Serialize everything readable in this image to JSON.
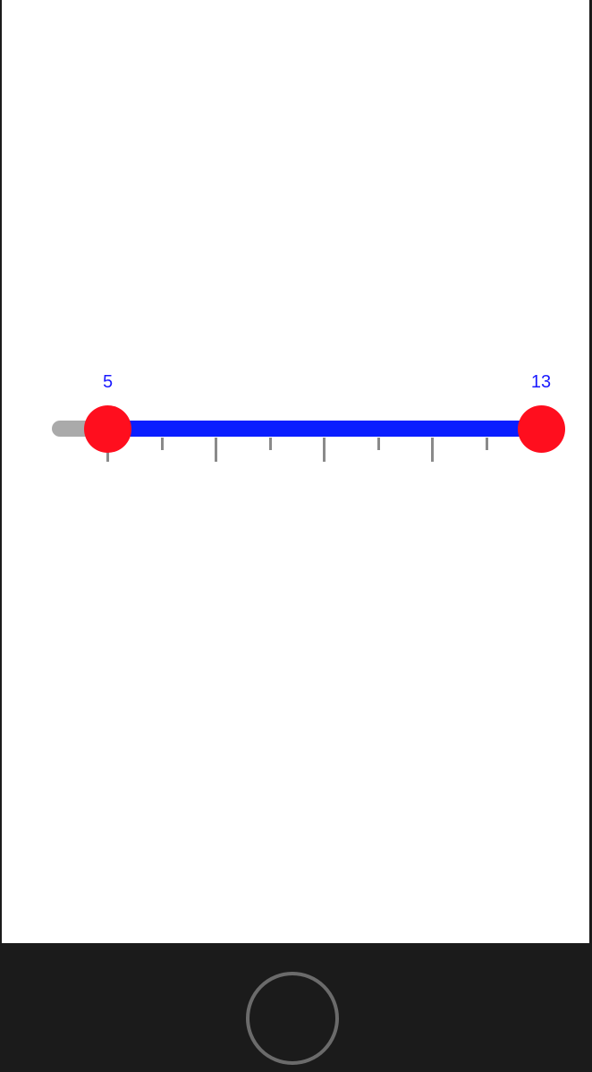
{
  "range_slider": {
    "min": 4,
    "max": 13,
    "low_value": 5,
    "high_value": 13,
    "low_label": "5",
    "high_label": "13",
    "colors": {
      "track": "#aaaaaa",
      "fill": "#0a1eff",
      "thumb": "#ff0e1e",
      "label": "#1a1aff",
      "tick": "#8a8a8a"
    }
  },
  "device": {
    "home_button_icon": "circle-home-icon"
  }
}
